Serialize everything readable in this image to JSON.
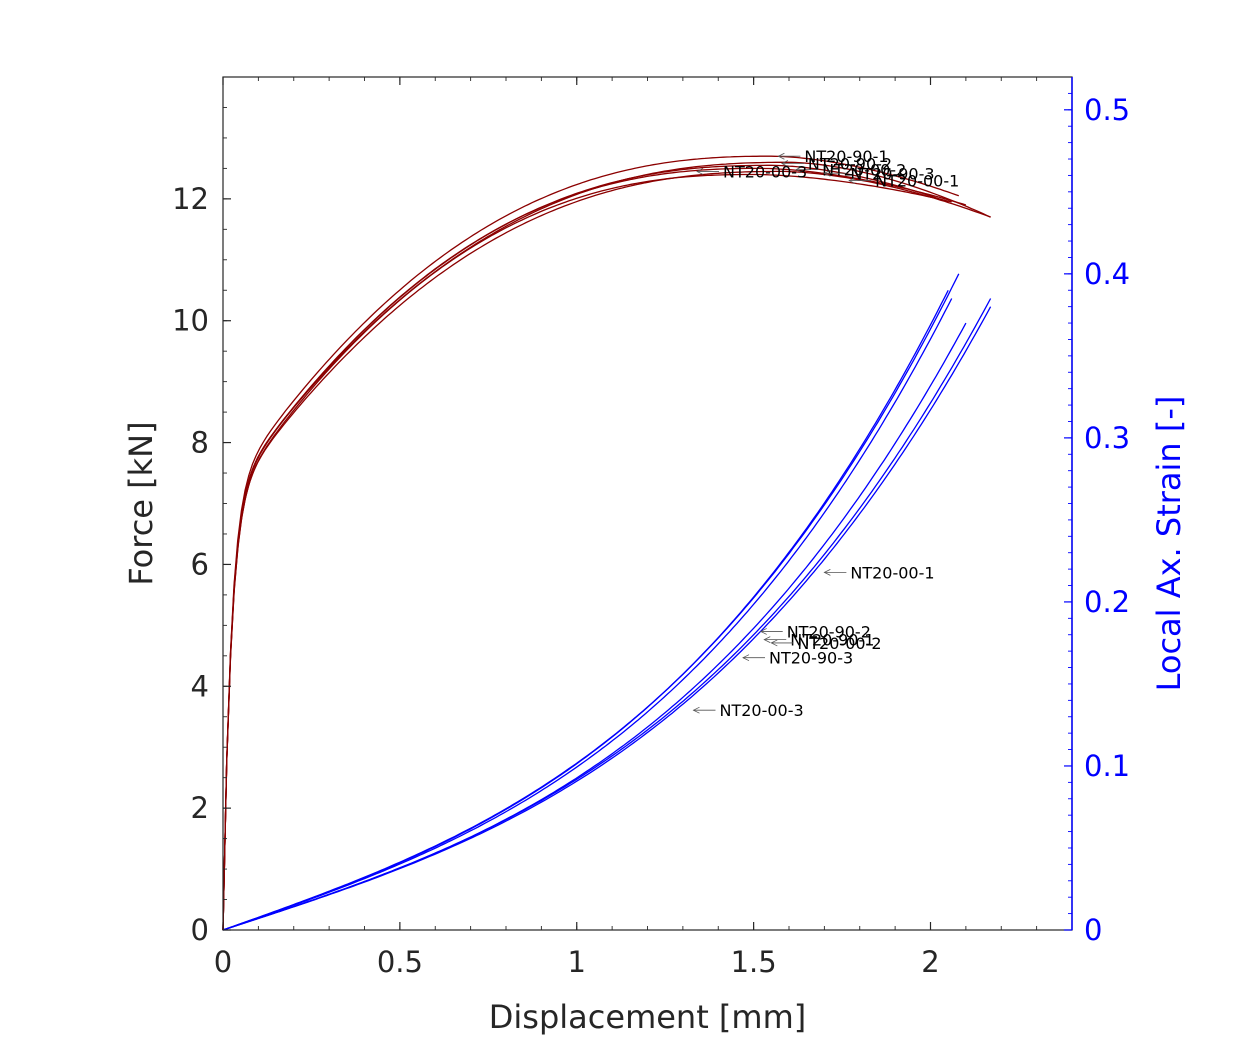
{
  "chart_data": {
    "type": "line",
    "xlabel": "Displacement [mm]",
    "ylabel": "Force [kN]",
    "y2label": "Local Ax. Strain [-]",
    "xlim": [
      0,
      2.4
    ],
    "ylim": [
      0,
      14
    ],
    "y2lim": [
      0,
      0.52
    ],
    "xticks": [
      0,
      0.5,
      1,
      1.5,
      2
    ],
    "xtick_labels": [
      "0",
      "0.5",
      "1",
      "1.5",
      "2"
    ],
    "yticks": [
      0,
      2,
      4,
      6,
      8,
      10,
      12
    ],
    "ytick_labels": [
      "0",
      "2",
      "4",
      "6",
      "8",
      "10",
      "12"
    ],
    "y2ticks": [
      0,
      0.1,
      0.2,
      0.3,
      0.4,
      0.5
    ],
    "y2tick_labels": [
      "0",
      "0.1",
      "0.2",
      "0.3",
      "0.4",
      "0.5"
    ],
    "grid": false,
    "colors": {
      "force": "#8b0000",
      "strain": "#0000ff",
      "axis_left": "#262626",
      "axis_right": "#0000ff"
    },
    "force_series": [
      {
        "name": "NT20-90-1",
        "fmax": 12.7,
        "dpeak": 1.55,
        "dend": 2.08,
        "fend": 12.05
      },
      {
        "name": "NT20-90-2",
        "fmax": 12.6,
        "dpeak": 1.6,
        "dend": 2.17,
        "fend": 11.7
      },
      {
        "name": "NT20-90-3",
        "fmax": 12.55,
        "dpeak": 1.55,
        "dend": 2.05,
        "fend": 11.95
      },
      {
        "name": "NT20-00-1",
        "fmax": 12.45,
        "dpeak": 1.58,
        "dend": 2.17,
        "fend": 11.7
      },
      {
        "name": "NT20-00-2",
        "fmax": 12.5,
        "dpeak": 1.52,
        "dend": 2.1,
        "fend": 11.9
      },
      {
        "name": "NT20-00-3",
        "fmax": 12.4,
        "dpeak": 1.5,
        "dend": 2.06,
        "fend": 11.95
      }
    ],
    "strain_series": [
      {
        "name": "NT20-90-1",
        "dend": 2.08,
        "send": 0.4
      },
      {
        "name": "NT20-90-2",
        "dend": 2.17,
        "send": 0.385
      },
      {
        "name": "NT20-90-3",
        "dend": 2.05,
        "send": 0.39
      },
      {
        "name": "NT20-00-1",
        "dend": 2.17,
        "send": 0.38
      },
      {
        "name": "NT20-00-2",
        "dend": 2.1,
        "send": 0.37
      },
      {
        "name": "NT20-00-3",
        "dend": 2.06,
        "send": 0.385
      }
    ],
    "annotations": [
      {
        "text": "NT20-90-1",
        "axis": "left",
        "x": 1.57,
        "y": 12.7
      },
      {
        "text": "NT20-90-2",
        "axis": "left",
        "x": 1.58,
        "y": 12.58
      },
      {
        "text": "NT20-00-2",
        "axis": "left",
        "x": 1.62,
        "y": 12.48
      },
      {
        "text": "NT20-90-3",
        "axis": "left",
        "x": 1.7,
        "y": 12.42
      },
      {
        "text": "NT20-00-3",
        "axis": "left",
        "x": 1.34,
        "y": 12.45
      },
      {
        "text": "NT20-00-1",
        "axis": "left",
        "x": 1.77,
        "y": 12.3
      },
      {
        "text": "NT20-00-1",
        "axis": "right",
        "x": 1.7,
        "y": 0.218
      },
      {
        "text": "NT20-90-2",
        "axis": "right",
        "x": 1.52,
        "y": 0.182
      },
      {
        "text": "NT20-90-1",
        "axis": "right",
        "x": 1.53,
        "y": 0.177
      },
      {
        "text": "NT20-00-2",
        "axis": "right",
        "x": 1.55,
        "y": 0.175
      },
      {
        "text": "NT20-90-3",
        "axis": "right",
        "x": 1.47,
        "y": 0.166
      },
      {
        "text": "NT20-00-3",
        "axis": "right",
        "x": 1.33,
        "y": 0.134
      }
    ]
  }
}
